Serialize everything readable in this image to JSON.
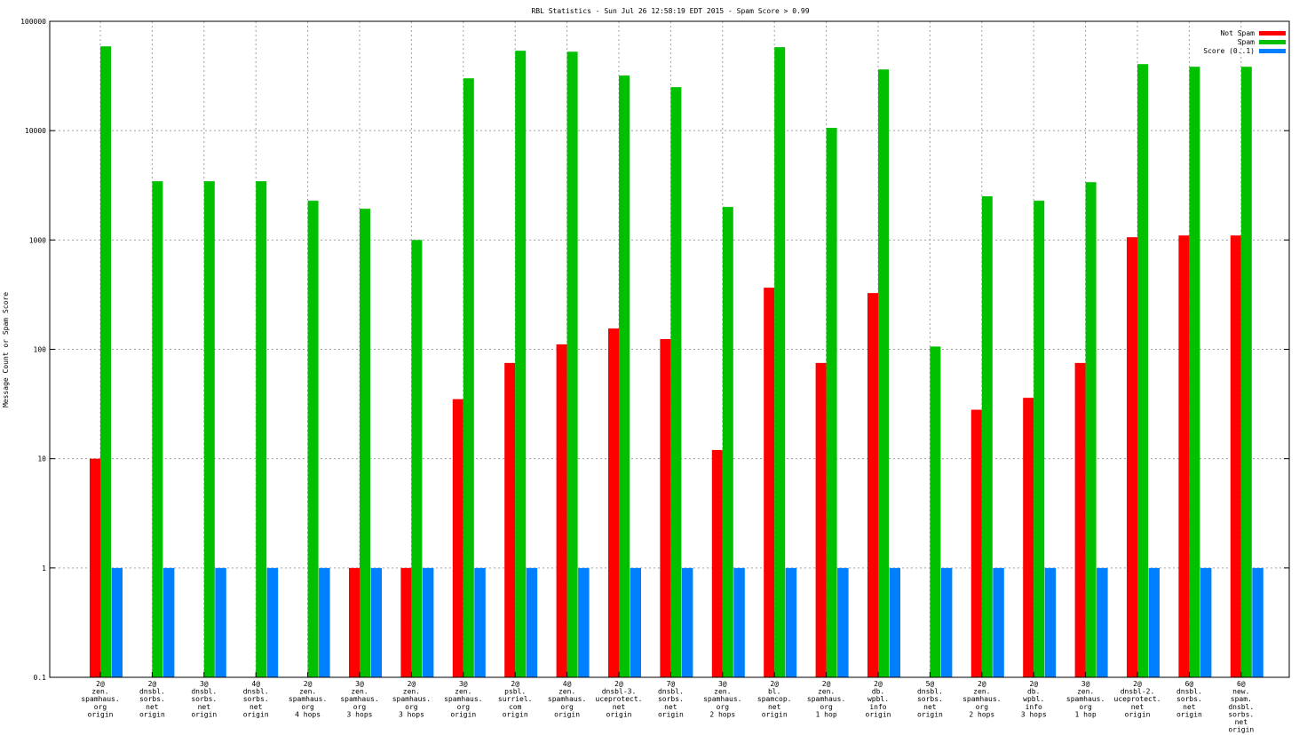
{
  "chart_data": {
    "type": "bar",
    "title": "RBL Statistics - Sun Jul 26 12:58:19 EDT 2015 - Spam Score > 0.99",
    "xlabel": "",
    "ylabel": "Message Count or Spam Score",
    "yscale": "log",
    "ylim": [
      0.1,
      100000
    ],
    "yticks": [
      "0.1",
      "1",
      "10",
      "100",
      "1000",
      "10000",
      "100000"
    ],
    "grid": true,
    "legend_position": "top-right",
    "categories": [
      [
        "2@",
        "zen.",
        "spamhaus.",
        "org",
        "origin"
      ],
      [
        "2@",
        "dnsbl.",
        "sorbs.",
        "net",
        "origin"
      ],
      [
        "3@",
        "dnsbl.",
        "sorbs.",
        "net",
        "origin"
      ],
      [
        "4@",
        "dnsbl.",
        "sorbs.",
        "net",
        "origin"
      ],
      [
        "2@",
        "zen.",
        "spamhaus.",
        "org",
        "4 hops"
      ],
      [
        "3@",
        "zen.",
        "spamhaus.",
        "org",
        "3 hops"
      ],
      [
        "2@",
        "zen.",
        "spamhaus.",
        "org",
        "3 hops"
      ],
      [
        "3@",
        "zen.",
        "spamhaus.",
        "org",
        "origin"
      ],
      [
        "2@",
        "psbl.",
        "surriel.",
        "com",
        "origin"
      ],
      [
        "4@",
        "zen.",
        "spamhaus.",
        "org",
        "origin"
      ],
      [
        "2@",
        "dnsbl-3.",
        "uceprotect.",
        "net",
        "origin"
      ],
      [
        "7@",
        "dnsbl.",
        "sorbs.",
        "net",
        "origin"
      ],
      [
        "3@",
        "zen.",
        "spamhaus.",
        "org",
        "2 hops"
      ],
      [
        "2@",
        "bl.",
        "spamcop.",
        "net",
        "origin"
      ],
      [
        "2@",
        "zen.",
        "spamhaus.",
        "org",
        "1 hop"
      ],
      [
        "2@",
        "db.",
        "wpbl.",
        "info",
        "origin"
      ],
      [
        "5@",
        "dnsbl.",
        "sorbs.",
        "net",
        "origin"
      ],
      [
        "2@",
        "zen.",
        "spamhaus.",
        "org",
        "2 hops"
      ],
      [
        "2@",
        "db.",
        "wpbl.",
        "info",
        "3 hops"
      ],
      [
        "3@",
        "zen.",
        "spamhaus.",
        "org",
        "1 hop"
      ],
      [
        "2@",
        "dnsbl-2.",
        "uceprotect.",
        "net",
        "origin"
      ],
      [
        "6@",
        "dnsbl.",
        "sorbs.",
        "net",
        "origin"
      ],
      [
        "6@",
        "new.",
        "spam.",
        "dnsbl.",
        "sorbs.",
        "net",
        "origin"
      ]
    ],
    "series": [
      {
        "name": "Not Spam",
        "color": "#ff0000",
        "values": [
          10,
          0,
          0,
          0,
          0,
          1,
          1,
          35,
          75,
          111,
          155,
          124,
          12,
          366,
          75,
          327,
          0,
          28,
          36,
          75,
          1060,
          1100,
          1100
        ]
      },
      {
        "name": "Spam",
        "color": "#00c000",
        "values": [
          59000,
          3445,
          3445,
          3445,
          2285,
          1930,
          1000,
          30100,
          53800,
          52700,
          31900,
          25000,
          2005,
          58000,
          10600,
          36300,
          106,
          2510,
          2285,
          3380,
          40600,
          38400,
          38400
        ]
      },
      {
        "name": "Score (0..1)",
        "color": "#0080ff",
        "values": [
          1,
          1,
          1,
          1,
          1,
          1,
          1,
          1,
          1,
          1,
          1,
          1,
          1,
          1,
          1,
          1,
          1,
          1,
          1,
          1,
          1,
          1,
          1
        ]
      }
    ]
  }
}
